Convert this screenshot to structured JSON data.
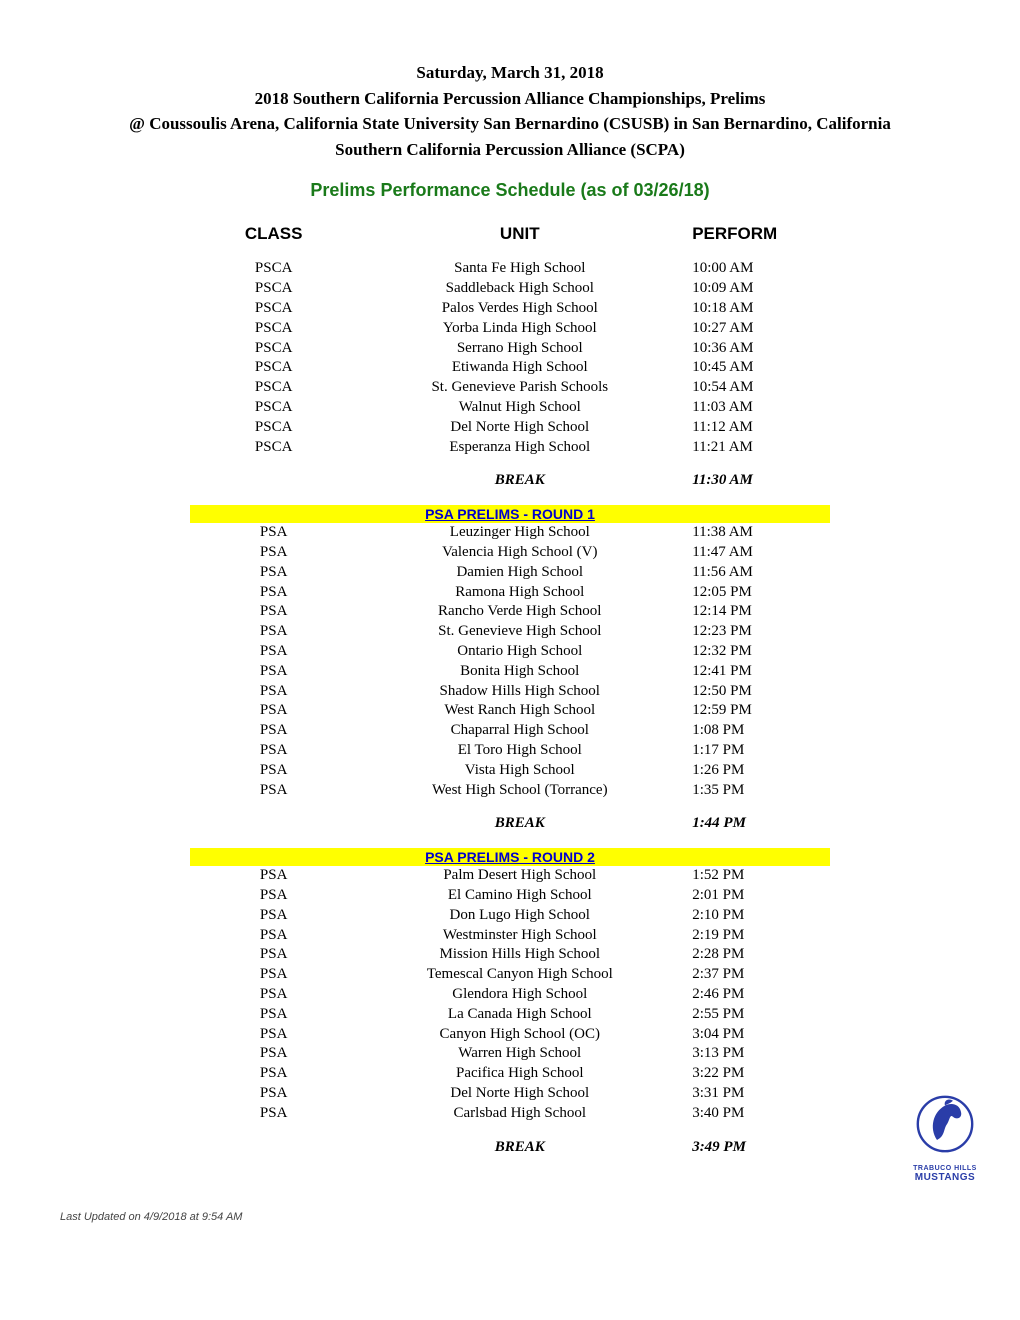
{
  "header": {
    "line1": "Saturday, March 31, 2018",
    "line2": "2018 Southern California Percussion Alliance Championships, Prelims",
    "line3": "@ Coussoulis Arena, California State University San Bernardino (CSUSB) in San Bernardino, California",
    "line4": "Southern California Percussion Alliance (SCPA)"
  },
  "subtitle": "Prelims Performance Schedule (as of 03/26/18)",
  "columns": {
    "c1": "CLASS",
    "c2": "UNIT",
    "c3": "PERFORM"
  },
  "blocks": [
    {
      "rows": [
        {
          "class": "PSCA",
          "unit": "Santa Fe High School",
          "time": "10:00 AM"
        },
        {
          "class": "PSCA",
          "unit": "Saddleback High School",
          "time": "10:09 AM"
        },
        {
          "class": "PSCA",
          "unit": "Palos Verdes High School",
          "time": "10:18 AM"
        },
        {
          "class": "PSCA",
          "unit": "Yorba Linda High School",
          "time": "10:27 AM"
        },
        {
          "class": "PSCA",
          "unit": "Serrano High School",
          "time": "10:36 AM"
        },
        {
          "class": "PSCA",
          "unit": "Etiwanda High School",
          "time": "10:45 AM"
        },
        {
          "class": "PSCA",
          "unit": "St. Genevieve Parish Schools",
          "time": "10:54 AM"
        },
        {
          "class": "PSCA",
          "unit": "Walnut High School",
          "time": "11:03 AM"
        },
        {
          "class": "PSCA",
          "unit": "Del Norte High School",
          "time": "11:12 AM"
        },
        {
          "class": "PSCA",
          "unit": "Esperanza High School",
          "time": "11:21 AM"
        }
      ],
      "break": {
        "label": "BREAK",
        "time": "11:30 AM"
      }
    },
    {
      "title": "PSA PRELIMS - ROUND 1",
      "rows": [
        {
          "class": "PSA",
          "unit": "Leuzinger High School",
          "time": "11:38 AM"
        },
        {
          "class": "PSA",
          "unit": "Valencia High School (V)",
          "time": "11:47 AM"
        },
        {
          "class": "PSA",
          "unit": "Damien High School",
          "time": "11:56 AM"
        },
        {
          "class": "PSA",
          "unit": "Ramona High School",
          "time": "12:05 PM"
        },
        {
          "class": "PSA",
          "unit": "Rancho Verde High School",
          "time": "12:14 PM"
        },
        {
          "class": "PSA",
          "unit": "St. Genevieve High School",
          "time": "12:23 PM"
        },
        {
          "class": "PSA",
          "unit": "Ontario High School",
          "time": "12:32 PM"
        },
        {
          "class": "PSA",
          "unit": "Bonita High School",
          "time": "12:41 PM"
        },
        {
          "class": "PSA",
          "unit": "Shadow Hills High School",
          "time": "12:50 PM"
        },
        {
          "class": "PSA",
          "unit": "West Ranch High School",
          "time": "12:59 PM"
        },
        {
          "class": "PSA",
          "unit": "Chaparral High School",
          "time": "1:08 PM"
        },
        {
          "class": "PSA",
          "unit": "El Toro High School",
          "time": "1:17 PM"
        },
        {
          "class": "PSA",
          "unit": "Vista High School",
          "time": "1:26 PM"
        },
        {
          "class": "PSA",
          "unit": "West High School (Torrance)",
          "time": "1:35 PM"
        }
      ],
      "break": {
        "label": "BREAK",
        "time": "1:44 PM"
      }
    },
    {
      "title": "PSA PRELIMS - ROUND 2",
      "rows": [
        {
          "class": "PSA",
          "unit": "Palm Desert High School",
          "time": "1:52 PM"
        },
        {
          "class": "PSA",
          "unit": "El Camino High School",
          "time": "2:01 PM"
        },
        {
          "class": "PSA",
          "unit": "Don Lugo High School",
          "time": "2:10 PM"
        },
        {
          "class": "PSA",
          "unit": "Westminster High School",
          "time": "2:19 PM"
        },
        {
          "class": "PSA",
          "unit": "Mission Hills High School",
          "time": "2:28 PM"
        },
        {
          "class": "PSA",
          "unit": "Temescal Canyon High School",
          "time": "2:37 PM"
        },
        {
          "class": "PSA",
          "unit": "Glendora High School",
          "time": "2:46 PM"
        },
        {
          "class": "PSA",
          "unit": "La Canada High School",
          "time": "2:55 PM"
        },
        {
          "class": "PSA",
          "unit": "Canyon High School (OC)",
          "time": "3:04 PM"
        },
        {
          "class": "PSA",
          "unit": "Warren High School",
          "time": "3:13 PM"
        },
        {
          "class": "PSA",
          "unit": "Pacifica High School",
          "time": "3:22 PM"
        },
        {
          "class": "PSA",
          "unit": "Del Norte High School",
          "time": "3:31 PM"
        },
        {
          "class": "PSA",
          "unit": "Carlsbad High School",
          "time": "3:40 PM"
        }
      ],
      "break": {
        "label": "BREAK",
        "time": "3:49 PM"
      }
    }
  ],
  "logo": {
    "line1": "TRABUCO HILLS",
    "line2": "MUSTANGS"
  },
  "footer": "Last Updated on 4/9/2018 at 9:54 AM"
}
